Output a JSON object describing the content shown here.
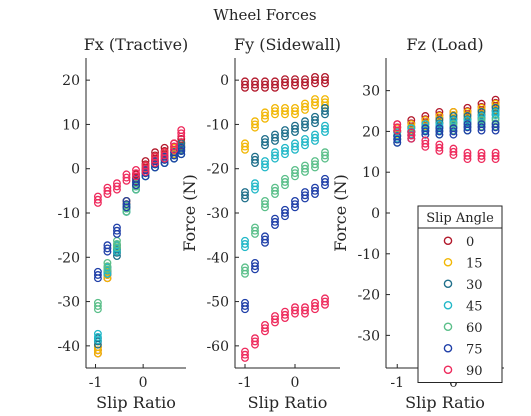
{
  "figure": {
    "title": "Wheel Forces"
  },
  "chart_data": [
    {
      "type": "scatter",
      "title": "Fx (Tractive)",
      "xlabel": "Slip Ratio",
      "ylabel": "",
      "xlim": [
        -1.2,
        0.9
      ],
      "ylim": [
        -45,
        25
      ],
      "xticks": [
        -1,
        0
      ],
      "yticks": [
        -40,
        -30,
        -20,
        -10,
        0,
        10,
        20
      ],
      "x": [
        -0.95,
        -0.75,
        -0.55,
        -0.35,
        -0.15,
        0.05,
        0.25,
        0.45,
        0.65,
        0.8
      ],
      "series": [
        {
          "values": [
            -41,
            -24,
            -18,
            -8,
            -2,
            1,
            3,
            4,
            5,
            6
          ]
        },
        {
          "values": [
            -41,
            -24,
            -18,
            -8,
            -3,
            0,
            2,
            3,
            4,
            5
          ]
        },
        {
          "values": [
            -39,
            -23,
            -19,
            -9,
            -4,
            -1,
            1,
            2,
            3,
            5
          ]
        },
        {
          "values": [
            -38,
            -23,
            -18,
            -9,
            -4,
            -1,
            1,
            2,
            3,
            4
          ]
        },
        {
          "values": [
            -31,
            -22,
            -17,
            -9,
            -4,
            -1,
            1,
            2,
            3,
            4
          ]
        },
        {
          "values": [
            -24,
            -18,
            -14,
            -8,
            -3,
            -1,
            1,
            2,
            3,
            4
          ]
        },
        {
          "values": [
            -7,
            -5,
            -4,
            -2,
            -1,
            0,
            2,
            3,
            5,
            8
          ]
        }
      ]
    },
    {
      "type": "scatter",
      "title": "Fy (Sidewall)",
      "xlabel": "Slip Ratio",
      "ylabel": "Force (N)",
      "xlim": [
        -1.2,
        0.9
      ],
      "ylim": [
        -65,
        5
      ],
      "xticks": [
        -1,
        0
      ],
      "yticks": [
        -60,
        -50,
        -40,
        -30,
        -20,
        -10,
        0
      ],
      "x": [
        -1,
        -0.8,
        -0.6,
        -0.4,
        -0.2,
        0,
        0.2,
        0.4,
        0.6
      ],
      "series": [
        {
          "values": [
            -1,
            -1,
            -1,
            -1,
            -0.5,
            -0.5,
            -0.5,
            0,
            0
          ]
        },
        {
          "values": [
            -15,
            -10,
            -8,
            -7,
            -7,
            -7,
            -6,
            -5,
            -5
          ]
        },
        {
          "values": [
            -26,
            -18,
            -14,
            -13,
            -12,
            -11,
            -10,
            -9,
            -7
          ]
        },
        {
          "values": [
            -37,
            -24,
            -19,
            -17,
            -16,
            -15,
            -14,
            -13,
            -11
          ]
        },
        {
          "values": [
            -43,
            -34,
            -28,
            -25,
            -23,
            -21,
            -20,
            -19,
            -17
          ]
        },
        {
          "values": [
            -51,
            -42,
            -36,
            -32,
            -30,
            -28,
            -26,
            -25,
            -23
          ]
        },
        {
          "values": [
            -62,
            -59,
            -56,
            -54,
            -53,
            -52,
            -52,
            -51,
            -50
          ]
        }
      ]
    },
    {
      "type": "scatter",
      "title": "Fz (Load)",
      "xlabel": "Slip Ratio",
      "ylabel": "Force (N)",
      "xlim": [
        -1.2,
        0.9
      ],
      "ylim": [
        -38,
        38
      ],
      "xticks": [
        -1,
        0
      ],
      "yticks": [
        -30,
        -20,
        -10,
        0,
        10,
        20,
        30
      ],
      "x": [
        -1,
        -0.75,
        -0.5,
        -0.25,
        0,
        0.25,
        0.5,
        0.75
      ],
      "series": [
        {
          "name": "0",
          "values": [
            21,
            22,
            23,
            24,
            24,
            25,
            26,
            27
          ]
        },
        {
          "name": "15",
          "values": [
            20,
            21,
            22,
            23,
            24,
            24,
            25,
            26
          ]
        },
        {
          "name": "30",
          "values": [
            19,
            20,
            21,
            22,
            23,
            23,
            24,
            25
          ]
        },
        {
          "name": "45",
          "values": [
            19,
            20,
            21,
            21,
            22,
            22,
            23,
            24
          ]
        },
        {
          "name": "60",
          "values": [
            18,
            19,
            20,
            20,
            21,
            21,
            22,
            22
          ]
        },
        {
          "name": "75",
          "values": [
            18,
            19,
            20,
            20,
            20,
            21,
            21,
            21
          ]
        },
        {
          "name": "90",
          "values": [
            21,
            19,
            17,
            16,
            15,
            14,
            14,
            14
          ]
        }
      ],
      "legend": {
        "title": "Slip Angle",
        "placement": "bottom-right"
      }
    }
  ],
  "colors": [
    "#b2182b",
    "#f2b705",
    "#1f6f8b",
    "#22b8c8",
    "#5bbf8a",
    "#1f3fa8",
    "#ee2a5c"
  ]
}
